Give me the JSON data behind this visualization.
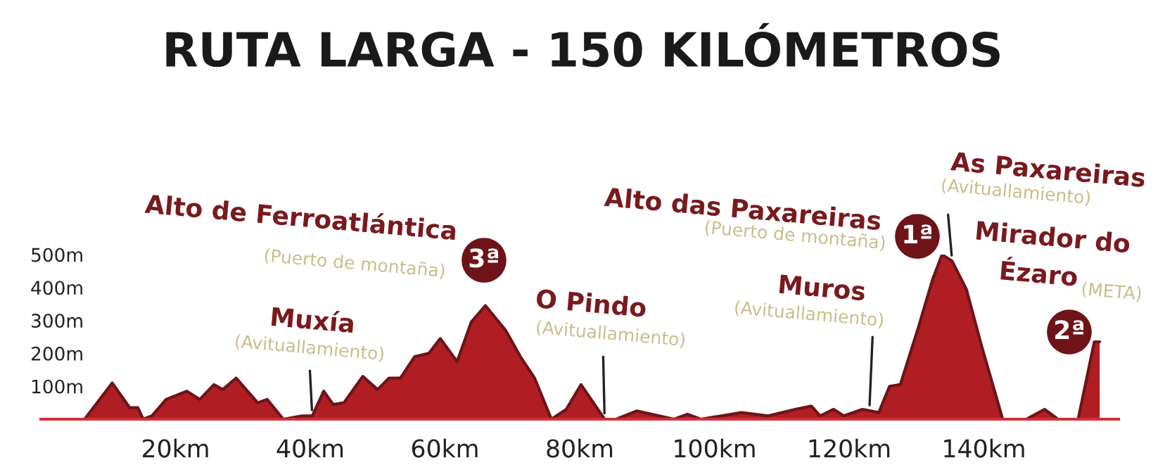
{
  "chart_data": {
    "type": "area",
    "title": "RUTA LARGA - 150 KILÓMETROS",
    "x": [
      6.5,
      10.6,
      13.2,
      14.4,
      15.2,
      16.5,
      18.6,
      21.7,
      23.6,
      25.7,
      27,
      29,
      32.2,
      33.6,
      36,
      38.8,
      40.3,
      42,
      43.4,
      45,
      47.8,
      50,
      51.7,
      53.4,
      55.5,
      57.6,
      59.3,
      61.8,
      63.9,
      66,
      69,
      71.2,
      73.3,
      75.8,
      78,
      80.2,
      83.7,
      85.4,
      88.5,
      94,
      96,
      98,
      104,
      108,
      112,
      114.4,
      115.7,
      117.7,
      119.2,
      122,
      124.4,
      126,
      127.6,
      130.3,
      132.4,
      133.8,
      135.3,
      137.4,
      139.7,
      142.8,
      146.3,
      149,
      151,
      154,
      156.4,
      157.2
    ],
    "series": [
      {
        "color": "#b01e23",
        "values": [
          0,
          110,
          35,
          35,
          0,
          10,
          60,
          85,
          60,
          105,
          90,
          125,
          50,
          60,
          0,
          10,
          10,
          85,
          45,
          50,
          130,
          90,
          125,
          125,
          190,
          200,
          245,
          175,
          295,
          345,
          270,
          190,
          125,
          0,
          30,
          105,
          0,
          0,
          25,
          0,
          15,
          0,
          20,
          10,
          30,
          40,
          10,
          30,
          10,
          30,
          20,
          100,
          105,
          280,
          425,
          500,
          480,
          395,
          220,
          0,
          0,
          30,
          0,
          0,
          235,
          235
        ]
      }
    ],
    "xlim": [
      0,
      160
    ],
    "ylim": [
      0,
      500
    ],
    "xticks": [
      {
        "value": 20,
        "label": "20km"
      },
      {
        "value": 40,
        "label": "40km"
      },
      {
        "value": 60,
        "label": "60km"
      },
      {
        "value": 80,
        "label": "80km"
      },
      {
        "value": 100,
        "label": "100km"
      },
      {
        "value": 120,
        "label": "120km"
      },
      {
        "value": 140,
        "label": "140km"
      }
    ],
    "yticks": [
      {
        "value": 100,
        "label": "100m"
      },
      {
        "value": 200,
        "label": "200m"
      },
      {
        "value": 300,
        "label": "300m"
      },
      {
        "value": 400,
        "label": "400m"
      },
      {
        "value": 500,
        "label": "500m"
      }
    ],
    "grid": false,
    "legend": false,
    "annotations": [
      "Alto de Ferroatlántica",
      "(Puerto de montaña)",
      "3ª",
      "Muxía",
      {
        "text": "(Avituallamiento)",
        "x": 40.3,
        "y": 10
      },
      "O Pindo",
      {
        "text": "(Avituallamiento)",
        "x": 83.7,
        "y": 0
      },
      "Alto das Paxareiras",
      "(Puerto de montaña)",
      "1ª",
      "Muros",
      {
        "text": "(Avituallamiento)",
        "x": 123,
        "y": 25
      },
      "As Paxareiras",
      {
        "text": "(Avituallamiento)",
        "x": 135.3,
        "y": 480
      },
      "Mirador do",
      "Ézaro",
      "(META)",
      "2ª"
    ]
  }
}
